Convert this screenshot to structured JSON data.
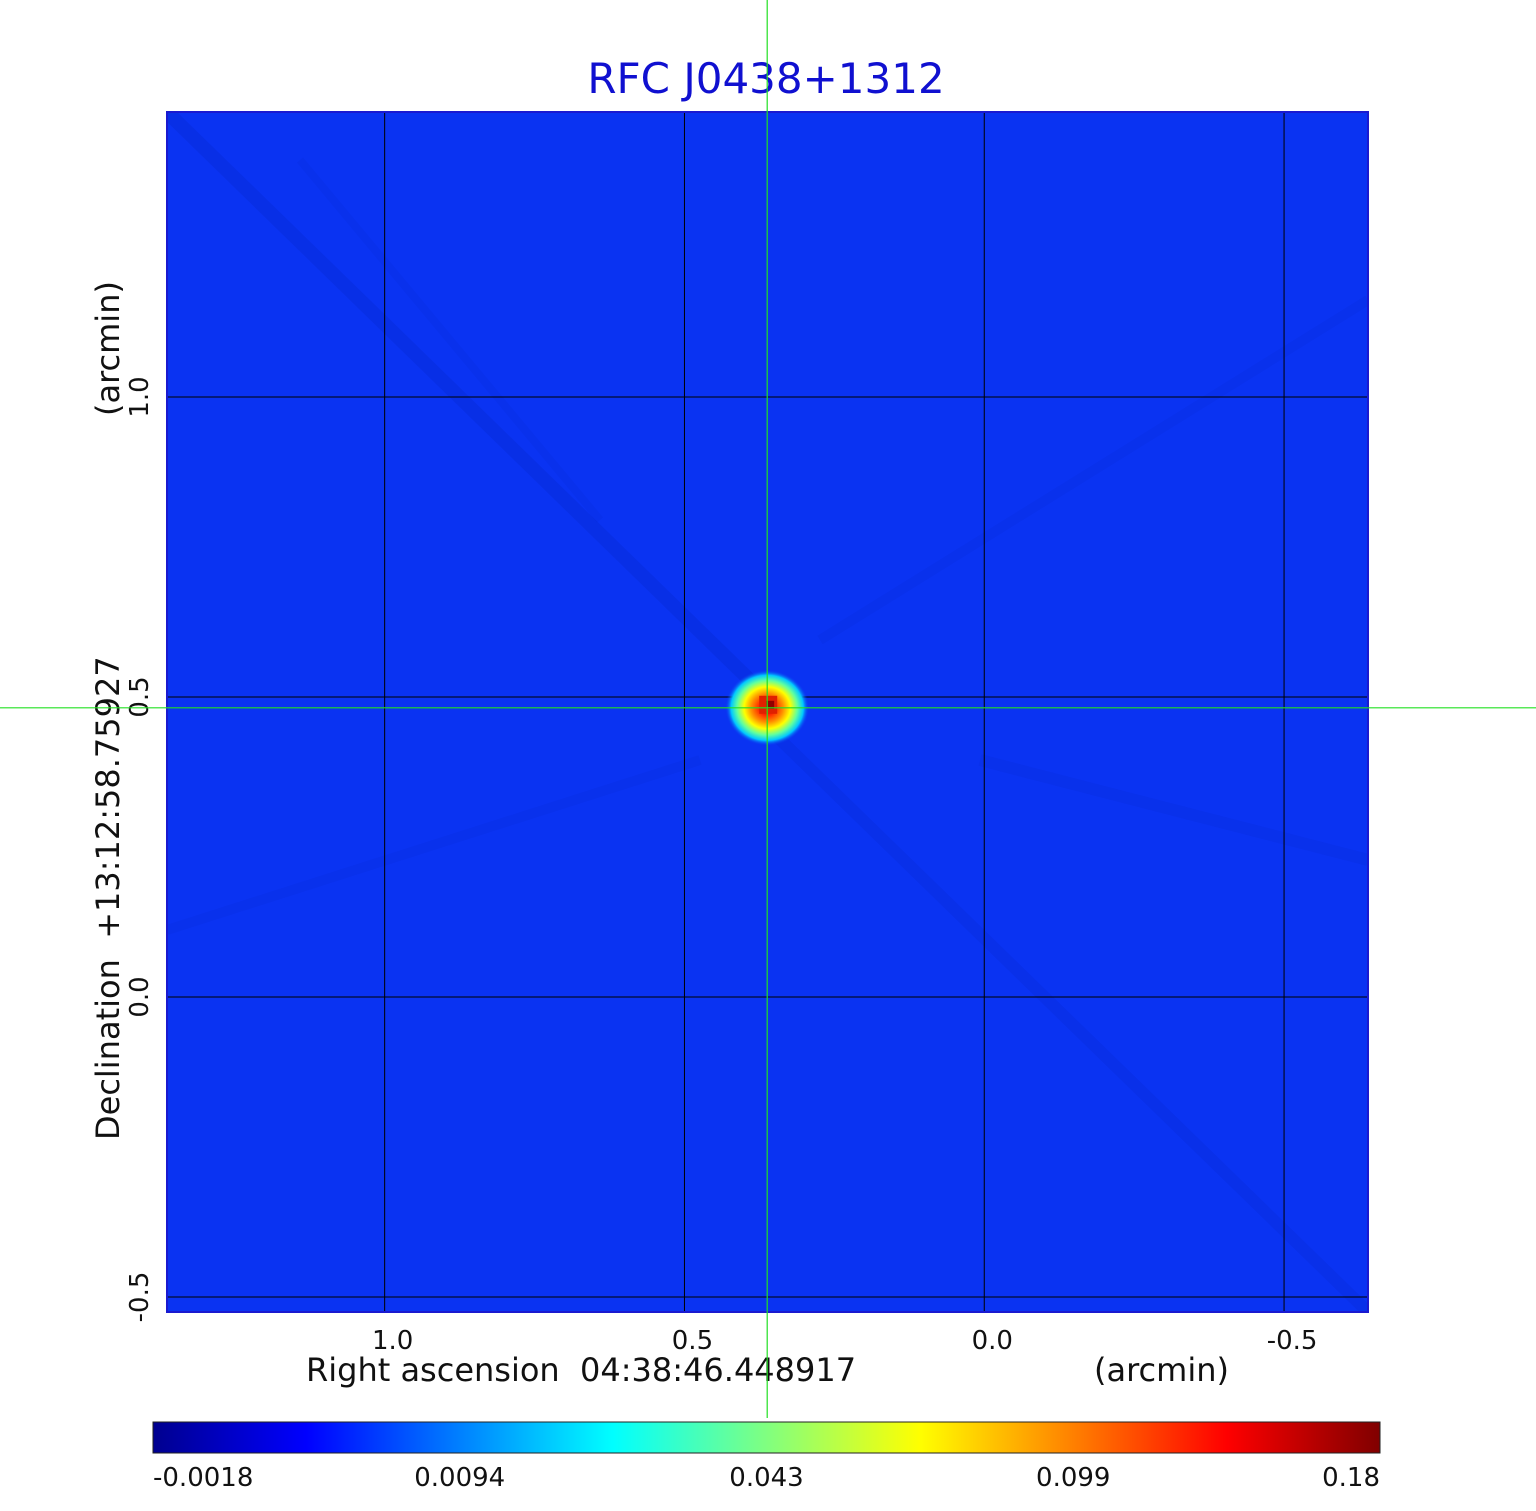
{
  "chart_data": {
    "type": "heatmap",
    "title": "RFC J0438+1312",
    "colors": {
      "title": "#1010d0",
      "background_blue": "#0a33f2",
      "grid": "#000000",
      "crosshair": "#22e022"
    },
    "x_axis": {
      "center_label": "Right ascension  04:38:46.448917",
      "unit_label": "(arcmin)",
      "ticks": [
        {
          "value": 1.0,
          "label": "1.0"
        },
        {
          "value": 0.5,
          "label": "0.5"
        },
        {
          "value": 0.0,
          "label": "0.0"
        },
        {
          "value": -0.5,
          "label": "-0.5"
        }
      ],
      "range": [
        1.363,
        -0.64
      ],
      "reversed": true
    },
    "y_axis": {
      "center_label": "Declination  +13:12:58.75927",
      "unit_label": "(arcmin)",
      "ticks": [
        {
          "value": 1.0,
          "label": "1.0"
        },
        {
          "value": 0.5,
          "label": "0.5"
        },
        {
          "value": 0.0,
          "label": "0.0"
        },
        {
          "value": -0.5,
          "label": "-0.5"
        }
      ],
      "range": [
        -0.525,
        1.475
      ]
    },
    "grid": true,
    "crosshair": {
      "x": 0.362,
      "y": 0.482
    },
    "source_peak": {
      "x": 0.362,
      "y": 0.482,
      "value": 0.18
    },
    "colorbar": {
      "tick_labels": [
        "-0.0018",
        "0.0094",
        "0.043",
        "0.099",
        "0.18"
      ],
      "stops": [
        "#00008f",
        "#0000ff",
        "#0080ff",
        "#00ffff",
        "#80ff80",
        "#ffff00",
        "#ff8000",
        "#ff0000",
        "#800000"
      ]
    }
  }
}
